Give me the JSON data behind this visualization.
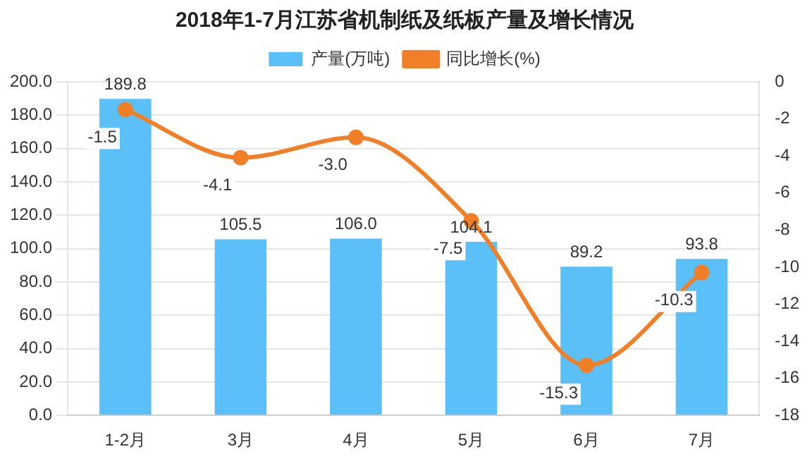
{
  "chart_data": {
    "type": "bar",
    "title": "2018年1-7月江苏省机制纸及纸板产量及增长情况",
    "categories": [
      "1-2月",
      "3月",
      "4月",
      "5月",
      "6月",
      "7月"
    ],
    "series": [
      {
        "name": "产量(万吨)",
        "color": "#5bc0f8",
        "values": [
          189.8,
          105.5,
          106.0,
          104.1,
          89.2,
          93.8
        ],
        "value_labels": [
          "189.8",
          "105.5",
          "106.0",
          "104.1",
          "89.2",
          "93.8"
        ]
      },
      {
        "name": "同比增长(%)",
        "type": "line",
        "axis": "y2",
        "color": "#f07f27",
        "values": [
          -1.5,
          -4.1,
          -3.0,
          -7.5,
          -15.3,
          -10.3
        ],
        "value_labels": [
          "-1.5",
          "-4.1",
          "-3.0",
          "-7.5",
          "-15.3",
          "-10.3"
        ]
      }
    ],
    "ylim": [
      0,
      200
    ],
    "yticks": [
      {
        "value": 0,
        "label": "0.0"
      },
      {
        "value": 20,
        "label": "20.0"
      },
      {
        "value": 40,
        "label": "40.0"
      },
      {
        "value": 60,
        "label": "60.0"
      },
      {
        "value": 80,
        "label": "80.0"
      },
      {
        "value": 100,
        "label": "100.0"
      },
      {
        "value": 120,
        "label": "120.0"
      },
      {
        "value": 140,
        "label": "140.0"
      },
      {
        "value": 160,
        "label": "160.0"
      },
      {
        "value": 180,
        "label": "180.0"
      },
      {
        "value": 200,
        "label": "200.0"
      }
    ],
    "y2lim": [
      -18,
      0
    ],
    "y2ticks": [
      0,
      -2,
      -4,
      -6,
      -8,
      -10,
      -12,
      -14,
      -16,
      -18
    ],
    "grid": "y",
    "legend": "top",
    "marker": "circle"
  }
}
